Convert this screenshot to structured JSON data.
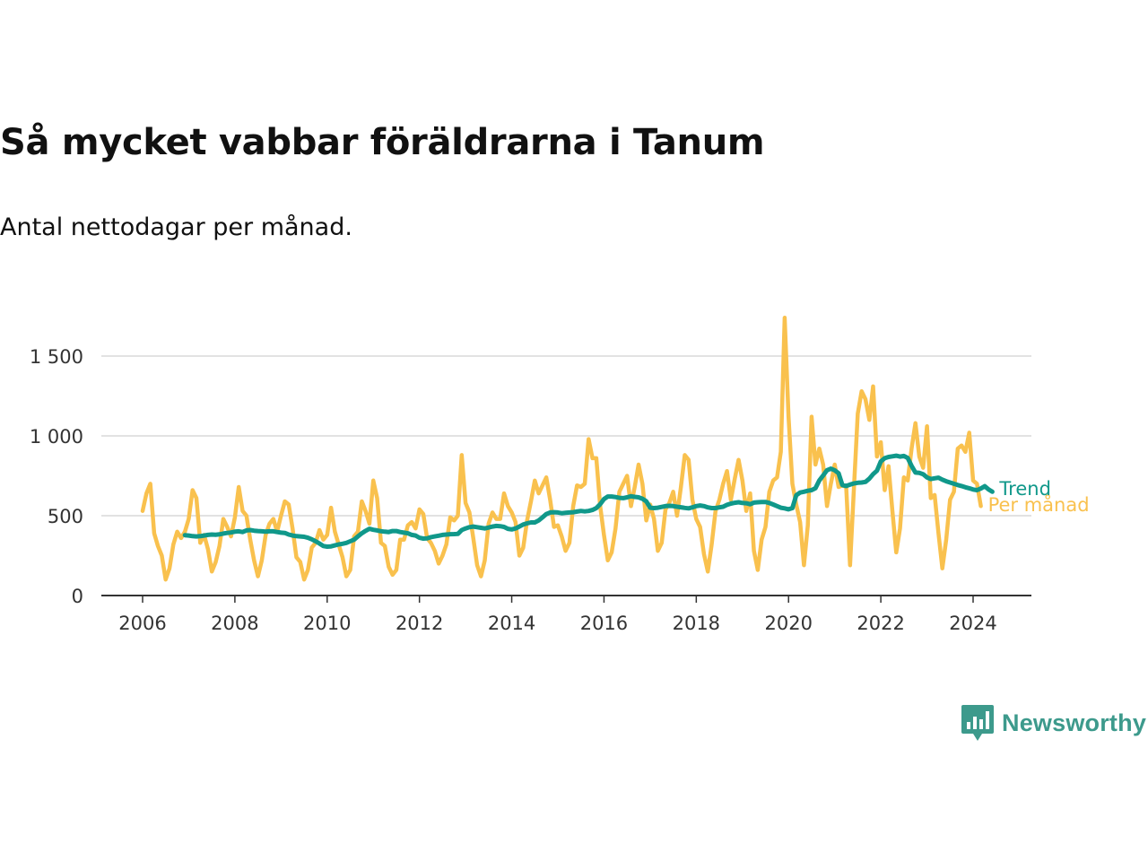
{
  "title": "Så mycket vabbar föräldrarna i Tanum",
  "subtitle": "Antal nettodagar per månad.",
  "brand": {
    "name": "Newsworthy",
    "icon": "newsworthy-logo-icon",
    "color": "#3d9a8c"
  },
  "colors": {
    "per_manad": "#f9c14e",
    "trend": "#10988a",
    "grid": "#d9d9d9",
    "axis": "#333333"
  },
  "chart_data": {
    "type": "line",
    "title": "Så mycket vabbar föräldrarna i Tanum",
    "subtitle": "Antal nettodagar per månad.",
    "xlabel": "",
    "ylabel": "",
    "x_ticks": [
      2006,
      2008,
      2010,
      2012,
      2014,
      2016,
      2018,
      2020,
      2022,
      2024
    ],
    "x_tick_labels": [
      "2006",
      "2008",
      "2010",
      "2012",
      "2014",
      "2016",
      "2018",
      "2020",
      "2022",
      "2024"
    ],
    "y_ticks": [
      0,
      500,
      1000,
      1500
    ],
    "y_tick_labels": [
      "0",
      "500",
      "1 000",
      "1 500"
    ],
    "ylim": [
      0,
      1600
    ],
    "grid": "horizontal",
    "legend": "inline labels at line ends",
    "series": [
      {
        "name": "Per månad",
        "start": "2006-01",
        "frequency": "monthly",
        "values": [
          530,
          640,
          700,
          390,
          310,
          250,
          100,
          170,
          320,
          400,
          360,
          400,
          480,
          660,
          610,
          330,
          380,
          290,
          150,
          210,
          310,
          480,
          430,
          370,
          490,
          680,
          530,
          500,
          350,
          220,
          120,
          220,
          380,
          450,
          480,
          400,
          500,
          590,
          570,
          420,
          240,
          210,
          100,
          160,
          300,
          330,
          410,
          350,
          380,
          550,
          400,
          320,
          240,
          120,
          160,
          370,
          400,
          590,
          530,
          450,
          720,
          610,
          330,
          310,
          180,
          130,
          160,
          350,
          350,
          440,
          460,
          420,
          540,
          510,
          360,
          330,
          280,
          200,
          250,
          320,
          490,
          470,
          500,
          880,
          580,
          520,
          360,
          190,
          120,
          220,
          450,
          520,
          480,
          480,
          640,
          560,
          520,
          460,
          250,
          300,
          470,
          590,
          720,
          640,
          690,
          740,
          600,
          430,
          440,
          370,
          280,
          330,
          560,
          690,
          680,
          700,
          980,
          860,
          860,
          560,
          380,
          220,
          270,
          420,
          650,
          700,
          750,
          560,
          680,
          820,
          700,
          470,
          570,
          480,
          280,
          330,
          540,
          580,
          650,
          500,
          680,
          880,
          850,
          600,
          480,
          430,
          260,
          150,
          320,
          530,
          600,
          700,
          780,
          600,
          730,
          850,
          720,
          530,
          640,
          280,
          160,
          350,
          430,
          650,
          720,
          740,
          900,
          1740,
          1120,
          700,
          570,
          460,
          190,
          440,
          1120,
          820,
          920,
          820,
          560,
          700,
          820,
          680,
          690,
          680,
          190,
          670,
          1140,
          1280,
          1230,
          1100,
          1310,
          870,
          960,
          660,
          810,
          530,
          270,
          420,
          740,
          720,
          920,
          1080,
          870,
          800,
          1060,
          610,
          630,
          390,
          170,
          350,
          600,
          650,
          920,
          940,
          900,
          1020,
          720,
          700,
          560
        ]
      },
      {
        "name": "Trend",
        "start": "2006-12",
        "frequency": "monthly",
        "values": [
          378,
          376,
          372,
          370,
          372,
          376,
          380,
          382,
          381,
          383,
          388,
          392,
          395,
          400,
          402,
          398,
          408,
          410,
          406,
          404,
          402,
          400,
          402,
          402,
          398,
          394,
          392,
          382,
          376,
          372,
          370,
          368,
          362,
          352,
          340,
          326,
          310,
          306,
          308,
          314,
          320,
          324,
          330,
          340,
          350,
          370,
          390,
          405,
          418,
          412,
          408,
          403,
          400,
          398,
          404,
          404,
          398,
          394,
          390,
          380,
          376,
          362,
          357,
          358,
          366,
          370,
          375,
          380,
          382,
          384,
          385,
          386,
          410,
          420,
          428,
          432,
          428,
          424,
          420,
          426,
          432,
          436,
          434,
          430,
          418,
          414,
          420,
          432,
          445,
          452,
          458,
          458,
          470,
          490,
          510,
          520,
          522,
          520,
          516,
          518,
          520,
          522,
          526,
          530,
          527,
          530,
          536,
          548,
          572,
          604,
          620,
          620,
          617,
          612,
          610,
          615,
          622,
          618,
          615,
          606,
          590,
          550,
          548,
          550,
          555,
          560,
          562,
          560,
          556,
          553,
          549,
          546,
          552,
          560,
          564,
          560,
          552,
          548,
          548,
          552,
          556,
          568,
          576,
          581,
          584,
          580,
          578,
          572,
          582,
          584,
          586,
          586,
          580,
          570,
          560,
          550,
          546,
          540,
          548,
          628,
          645,
          650,
          656,
          660,
          672,
          720,
          752,
          785,
          795,
          784,
          766,
          692,
          686,
          695,
          702,
          706,
          708,
          712,
          732,
          760,
          782,
          840,
          860,
          868,
          872,
          876,
          870,
          874,
          862,
          812,
          770,
          768,
          760,
          740,
          730,
          734,
          738,
          726,
          716,
          708,
          700,
          692,
          686,
          678,
          672,
          664,
          660,
          670,
          685,
          665,
          650
        ]
      }
    ]
  }
}
